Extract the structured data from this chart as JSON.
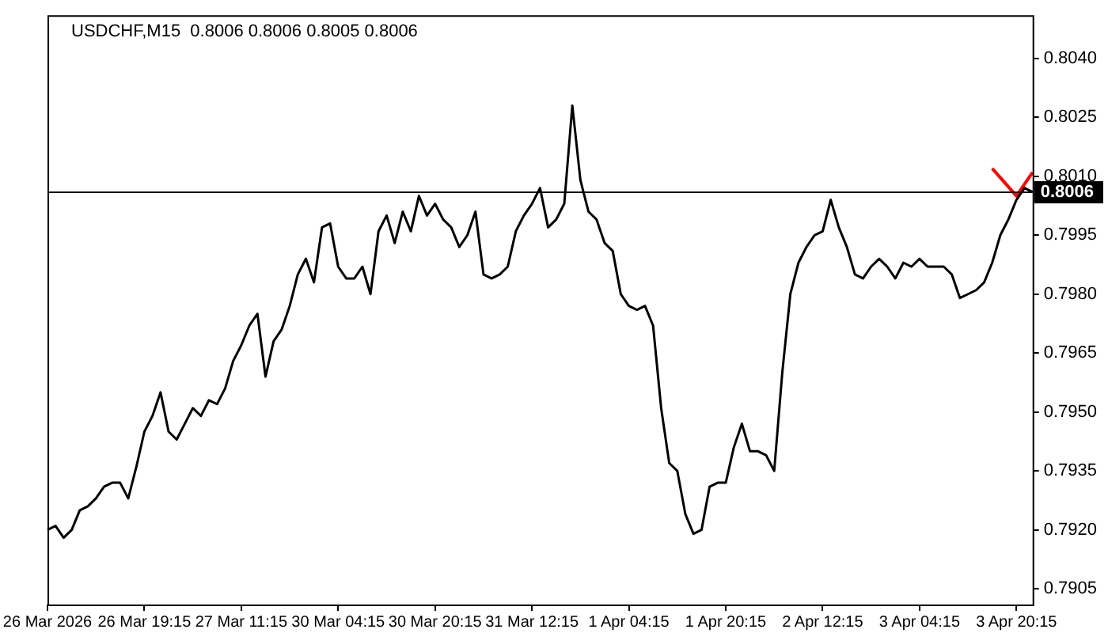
{
  "chart_data": {
    "type": "line",
    "title": "USDCHF,M15  0.8006 0.8006 0.8005 0.8006",
    "categories": [
      "26 Mar 2026",
      null,
      null,
      null,
      null,
      null,
      null,
      null,
      null,
      null,
      null,
      null,
      "26 Mar 19:15",
      null,
      null,
      null,
      null,
      null,
      null,
      null,
      null,
      null,
      null,
      null,
      "27 Mar 11:15",
      null,
      null,
      null,
      null,
      null,
      null,
      null,
      null,
      null,
      null,
      null,
      "30 Mar 04:15",
      null,
      null,
      null,
      null,
      null,
      null,
      null,
      null,
      null,
      null,
      null,
      "30 Mar 20:15",
      null,
      null,
      null,
      null,
      null,
      null,
      null,
      null,
      null,
      null,
      null,
      "31 Mar 12:15",
      null,
      null,
      null,
      null,
      null,
      null,
      null,
      null,
      null,
      null,
      null,
      "1 Apr 04:15",
      null,
      null,
      null,
      null,
      null,
      null,
      null,
      null,
      null,
      null,
      null,
      "1 Apr 20:15",
      null,
      null,
      null,
      null,
      null,
      null,
      null,
      null,
      null,
      null,
      null,
      "2 Apr 12:15",
      null,
      null,
      null,
      null,
      null,
      null,
      null,
      null,
      null,
      null,
      null,
      "3 Apr 04:15",
      null,
      null,
      null,
      null,
      null,
      null,
      null,
      null,
      null,
      null,
      null,
      "3 Apr 20:15",
      null,
      null
    ],
    "series": [
      {
        "color": "#000000",
        "values": [
          0.792,
          0.7921,
          0.7918,
          0.792,
          0.7925,
          0.7926,
          0.7928,
          0.7931,
          0.7932,
          0.7932,
          0.7928,
          0.7936,
          0.7945,
          0.7949,
          0.7955,
          0.7945,
          0.7943,
          0.7947,
          0.7951,
          0.7949,
          0.7953,
          0.7952,
          0.7956,
          0.7963,
          0.7967,
          0.7972,
          0.7975,
          0.7959,
          0.7968,
          0.7971,
          0.7977,
          0.7985,
          0.7989,
          0.7983,
          0.7997,
          0.7998,
          0.7987,
          0.7984,
          0.7984,
          0.7987,
          0.798,
          0.7996,
          0.8,
          0.7993,
          0.8001,
          0.7996,
          0.8005,
          0.8,
          0.8003,
          0.7999,
          0.7997,
          0.7992,
          0.7995,
          0.8001,
          0.7985,
          0.7984,
          0.7985,
          0.7987,
          0.7996,
          0.8,
          0.8003,
          0.8007,
          0.7997,
          0.7999,
          0.8003,
          0.8028,
          0.8009,
          0.8001,
          0.7999,
          0.7993,
          0.7991,
          0.798,
          0.7977,
          0.7976,
          0.7977,
          0.7972,
          0.7951,
          0.7937,
          0.7935,
          0.7924,
          0.7919,
          0.792,
          0.7931,
          0.7932,
          0.7932,
          0.7941,
          0.7947,
          0.794,
          0.794,
          0.7939,
          0.7935,
          0.796,
          0.798,
          0.7988,
          0.7992,
          0.7995,
          0.7996,
          0.8004,
          0.7997,
          0.7992,
          0.7985,
          0.7984,
          0.7987,
          0.7989,
          0.7987,
          0.7984,
          0.7988,
          0.7987,
          0.7989,
          0.7987,
          0.7987,
          0.7987,
          0.7985,
          0.7979,
          0.798,
          0.7981,
          0.7983,
          0.7988,
          0.7995,
          0.7999,
          0.8004,
          0.8007,
          0.8006
        ]
      },
      {
        "color": "#ff0000",
        "values": [
          null,
          null,
          null,
          null,
          null,
          null,
          null,
          null,
          null,
          null,
          null,
          null,
          null,
          null,
          null,
          null,
          null,
          null,
          null,
          null,
          null,
          null,
          null,
          null,
          null,
          null,
          null,
          null,
          null,
          null,
          null,
          null,
          null,
          null,
          null,
          null,
          null,
          null,
          null,
          null,
          null,
          null,
          null,
          null,
          null,
          null,
          null,
          null,
          null,
          null,
          null,
          null,
          null,
          null,
          null,
          null,
          null,
          null,
          null,
          null,
          null,
          null,
          null,
          null,
          null,
          null,
          null,
          null,
          null,
          null,
          null,
          null,
          null,
          null,
          null,
          null,
          null,
          null,
          null,
          null,
          null,
          null,
          null,
          null,
          null,
          null,
          null,
          null,
          null,
          null,
          null,
          null,
          null,
          null,
          null,
          null,
          null,
          null,
          null,
          null,
          null,
          null,
          null,
          null,
          null,
          null,
          null,
          null,
          null,
          null,
          null,
          null,
          null,
          null,
          null,
          null,
          null,
          0.8012,
          null,
          null,
          0.8005,
          null,
          0.8011
        ]
      }
    ],
    "ylim": [
      0.7901,
      0.8051
    ],
    "yticks": [
      0.7905,
      {
        "value": 0.792,
        "label": "0.7920"
      },
      0.7935,
      {
        "value": 0.795,
        "label": "0.7950"
      },
      0.7965,
      {
        "value": 0.798,
        "label": "0.7980"
      },
      0.7995,
      {
        "value": 0.801,
        "label": "0.8010"
      },
      0.8025,
      {
        "value": 0.804,
        "label": "0.8040"
      }
    ],
    "ref_lines": [
      {
        "axis": "y",
        "value": 0.8006,
        "label": "0.8006",
        "color": "#000000"
      }
    ],
    "grid": false,
    "legend": false,
    "marker": "none",
    "line_style": "solid"
  }
}
